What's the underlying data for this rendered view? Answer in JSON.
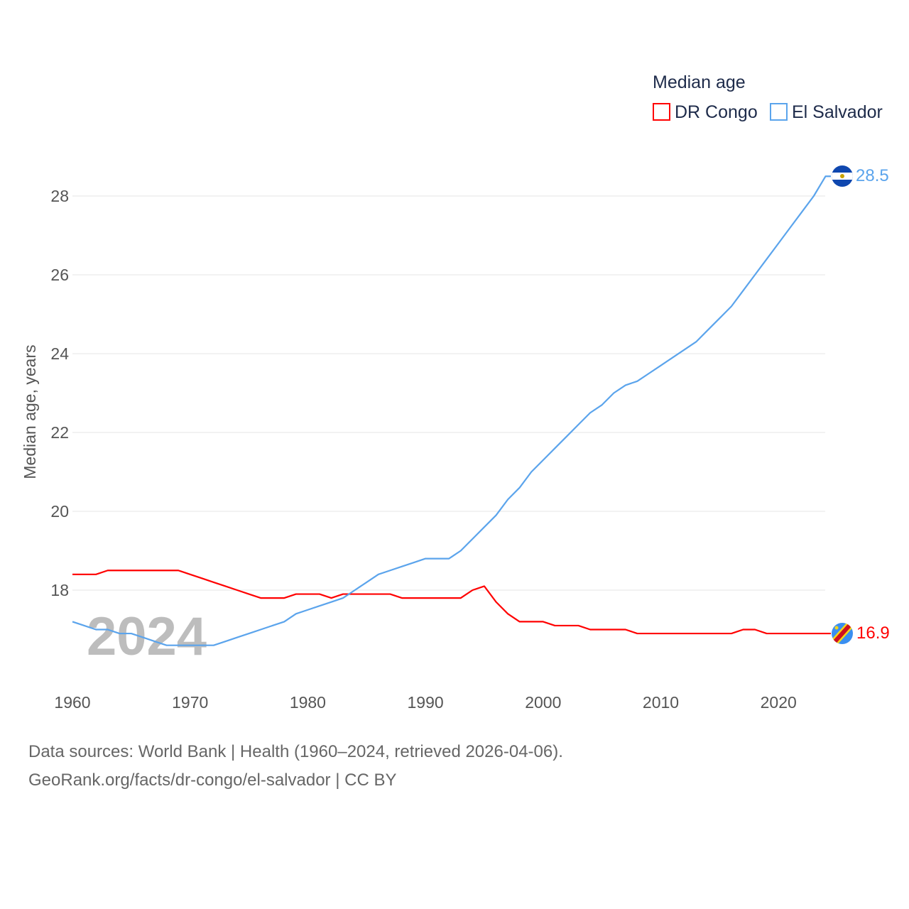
{
  "chart_data": {
    "type": "line",
    "title": "Median age",
    "ylabel": "Median age, years",
    "xlabel": "",
    "xlim": [
      1960,
      2024
    ],
    "ylim": [
      16.1,
      29
    ],
    "x_ticks": [
      "1960",
      "1970",
      "1980",
      "1990",
      "2000",
      "2010",
      "2020"
    ],
    "y_ticks": [
      "18",
      "20",
      "22",
      "24",
      "26",
      "28"
    ],
    "grid": true,
    "legend_position": "top-right",
    "watermark_year": "2024",
    "x": [
      1960,
      1961,
      1962,
      1963,
      1964,
      1965,
      1966,
      1967,
      1968,
      1969,
      1970,
      1971,
      1972,
      1973,
      1974,
      1975,
      1976,
      1977,
      1978,
      1979,
      1980,
      1981,
      1982,
      1983,
      1984,
      1985,
      1986,
      1987,
      1988,
      1989,
      1990,
      1991,
      1992,
      1993,
      1994,
      1995,
      1996,
      1997,
      1998,
      1999,
      2000,
      2001,
      2002,
      2003,
      2004,
      2005,
      2006,
      2007,
      2008,
      2009,
      2010,
      2011,
      2012,
      2013,
      2014,
      2015,
      2016,
      2017,
      2018,
      2019,
      2020,
      2021,
      2022,
      2023,
      2024
    ],
    "series": [
      {
        "name": "DR Congo",
        "color": "#ff0000",
        "end_label": "16.9",
        "values": [
          18.4,
          18.4,
          18.4,
          18.5,
          18.5,
          18.5,
          18.5,
          18.5,
          18.5,
          18.5,
          18.4,
          18.3,
          18.2,
          18.1,
          18.0,
          17.9,
          17.8,
          17.8,
          17.8,
          17.9,
          17.9,
          17.9,
          17.8,
          17.9,
          17.9,
          17.9,
          17.9,
          17.9,
          17.8,
          17.8,
          17.8,
          17.8,
          17.8,
          17.8,
          18.0,
          18.1,
          17.7,
          17.4,
          17.2,
          17.2,
          17.2,
          17.1,
          17.1,
          17.1,
          17.0,
          17.0,
          17.0,
          17.0,
          16.9,
          16.9,
          16.9,
          16.9,
          16.9,
          16.9,
          16.9,
          16.9,
          16.9,
          17.0,
          17.0,
          16.9,
          16.9,
          16.9,
          16.9,
          16.9,
          16.9
        ]
      },
      {
        "name": "El Salvador",
        "color": "#5ba4ec",
        "end_label": "28.5",
        "values": [
          17.2,
          17.1,
          17.0,
          17.0,
          16.9,
          16.9,
          16.8,
          16.7,
          16.6,
          16.6,
          16.6,
          16.6,
          16.6,
          16.7,
          16.8,
          16.9,
          17.0,
          17.1,
          17.2,
          17.4,
          17.5,
          17.6,
          17.7,
          17.8,
          18.0,
          18.2,
          18.4,
          18.5,
          18.6,
          18.7,
          18.8,
          18.8,
          18.8,
          19.0,
          19.3,
          19.6,
          19.9,
          20.3,
          20.6,
          21.0,
          21.3,
          21.6,
          21.9,
          22.2,
          22.5,
          22.7,
          23.0,
          23.2,
          23.3,
          23.5,
          23.7,
          23.9,
          24.1,
          24.3,
          24.6,
          24.9,
          25.2,
          25.6,
          26.0,
          26.4,
          26.8,
          27.2,
          27.6,
          28.0,
          28.5
        ]
      }
    ]
  },
  "footer": {
    "line1": "Data sources: World Bank | Health (1960–2024, retrieved 2026-04-06).",
    "line2": "GeoRank.org/facts/dr-congo/el-salvador | CC BY"
  }
}
